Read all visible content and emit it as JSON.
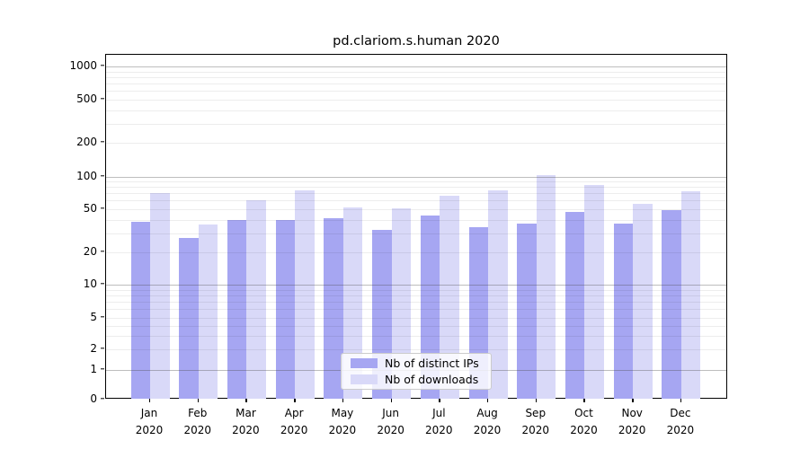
{
  "title": "pd.clariom.s.human 2020",
  "legend": {
    "entries": [
      {
        "label": "Nb of distinct IPs",
        "color": "#a6a6f2"
      },
      {
        "label": "Nb of downloads",
        "color": "#d9d9f8"
      }
    ]
  },
  "chart_data": {
    "type": "bar",
    "title": "pd.clariom.s.human 2020",
    "categories": [
      "Jan",
      "Feb",
      "Mar",
      "Apr",
      "May",
      "Jun",
      "Jul",
      "Aug",
      "Sep",
      "Oct",
      "Nov",
      "Dec"
    ],
    "category_year": "2020",
    "series": [
      {
        "name": "Nb of distinct IPs",
        "color": "#a6a6f2",
        "values": [
          38,
          27,
          40,
          40,
          41,
          32,
          44,
          34,
          37,
          47,
          37,
          49
        ]
      },
      {
        "name": "Nb of downloads",
        "color": "#d9d9f8",
        "values": [
          70,
          36,
          61,
          74,
          52,
          51,
          66,
          74,
          102,
          84,
          56,
          73
        ]
      }
    ],
    "yscale": "symlog",
    "ylim": [
      0,
      1000
    ],
    "ytick_labels": [
      "1000",
      "500",
      "200",
      "100",
      "50",
      "20",
      "10",
      "5",
      "2",
      "1",
      "0"
    ],
    "ytick_values": [
      1000,
      500,
      200,
      100,
      50,
      20,
      10,
      5,
      2,
      1,
      0
    ],
    "grid": "on",
    "legend_position": "lower center",
    "colors": {
      "major_grid": "rgba(70,70,70,0.35)",
      "minor_grid": "rgba(0,0,0,0.07)",
      "axis": "#000000"
    },
    "minor_grid_values": [
      2,
      3,
      4,
      5,
      6,
      7,
      8,
      9,
      20,
      30,
      40,
      50,
      60,
      70,
      80,
      90,
      200,
      300,
      400,
      500,
      600,
      700,
      800,
      900
    ],
    "major_grid_values": [
      1,
      10,
      100,
      1000
    ]
  }
}
